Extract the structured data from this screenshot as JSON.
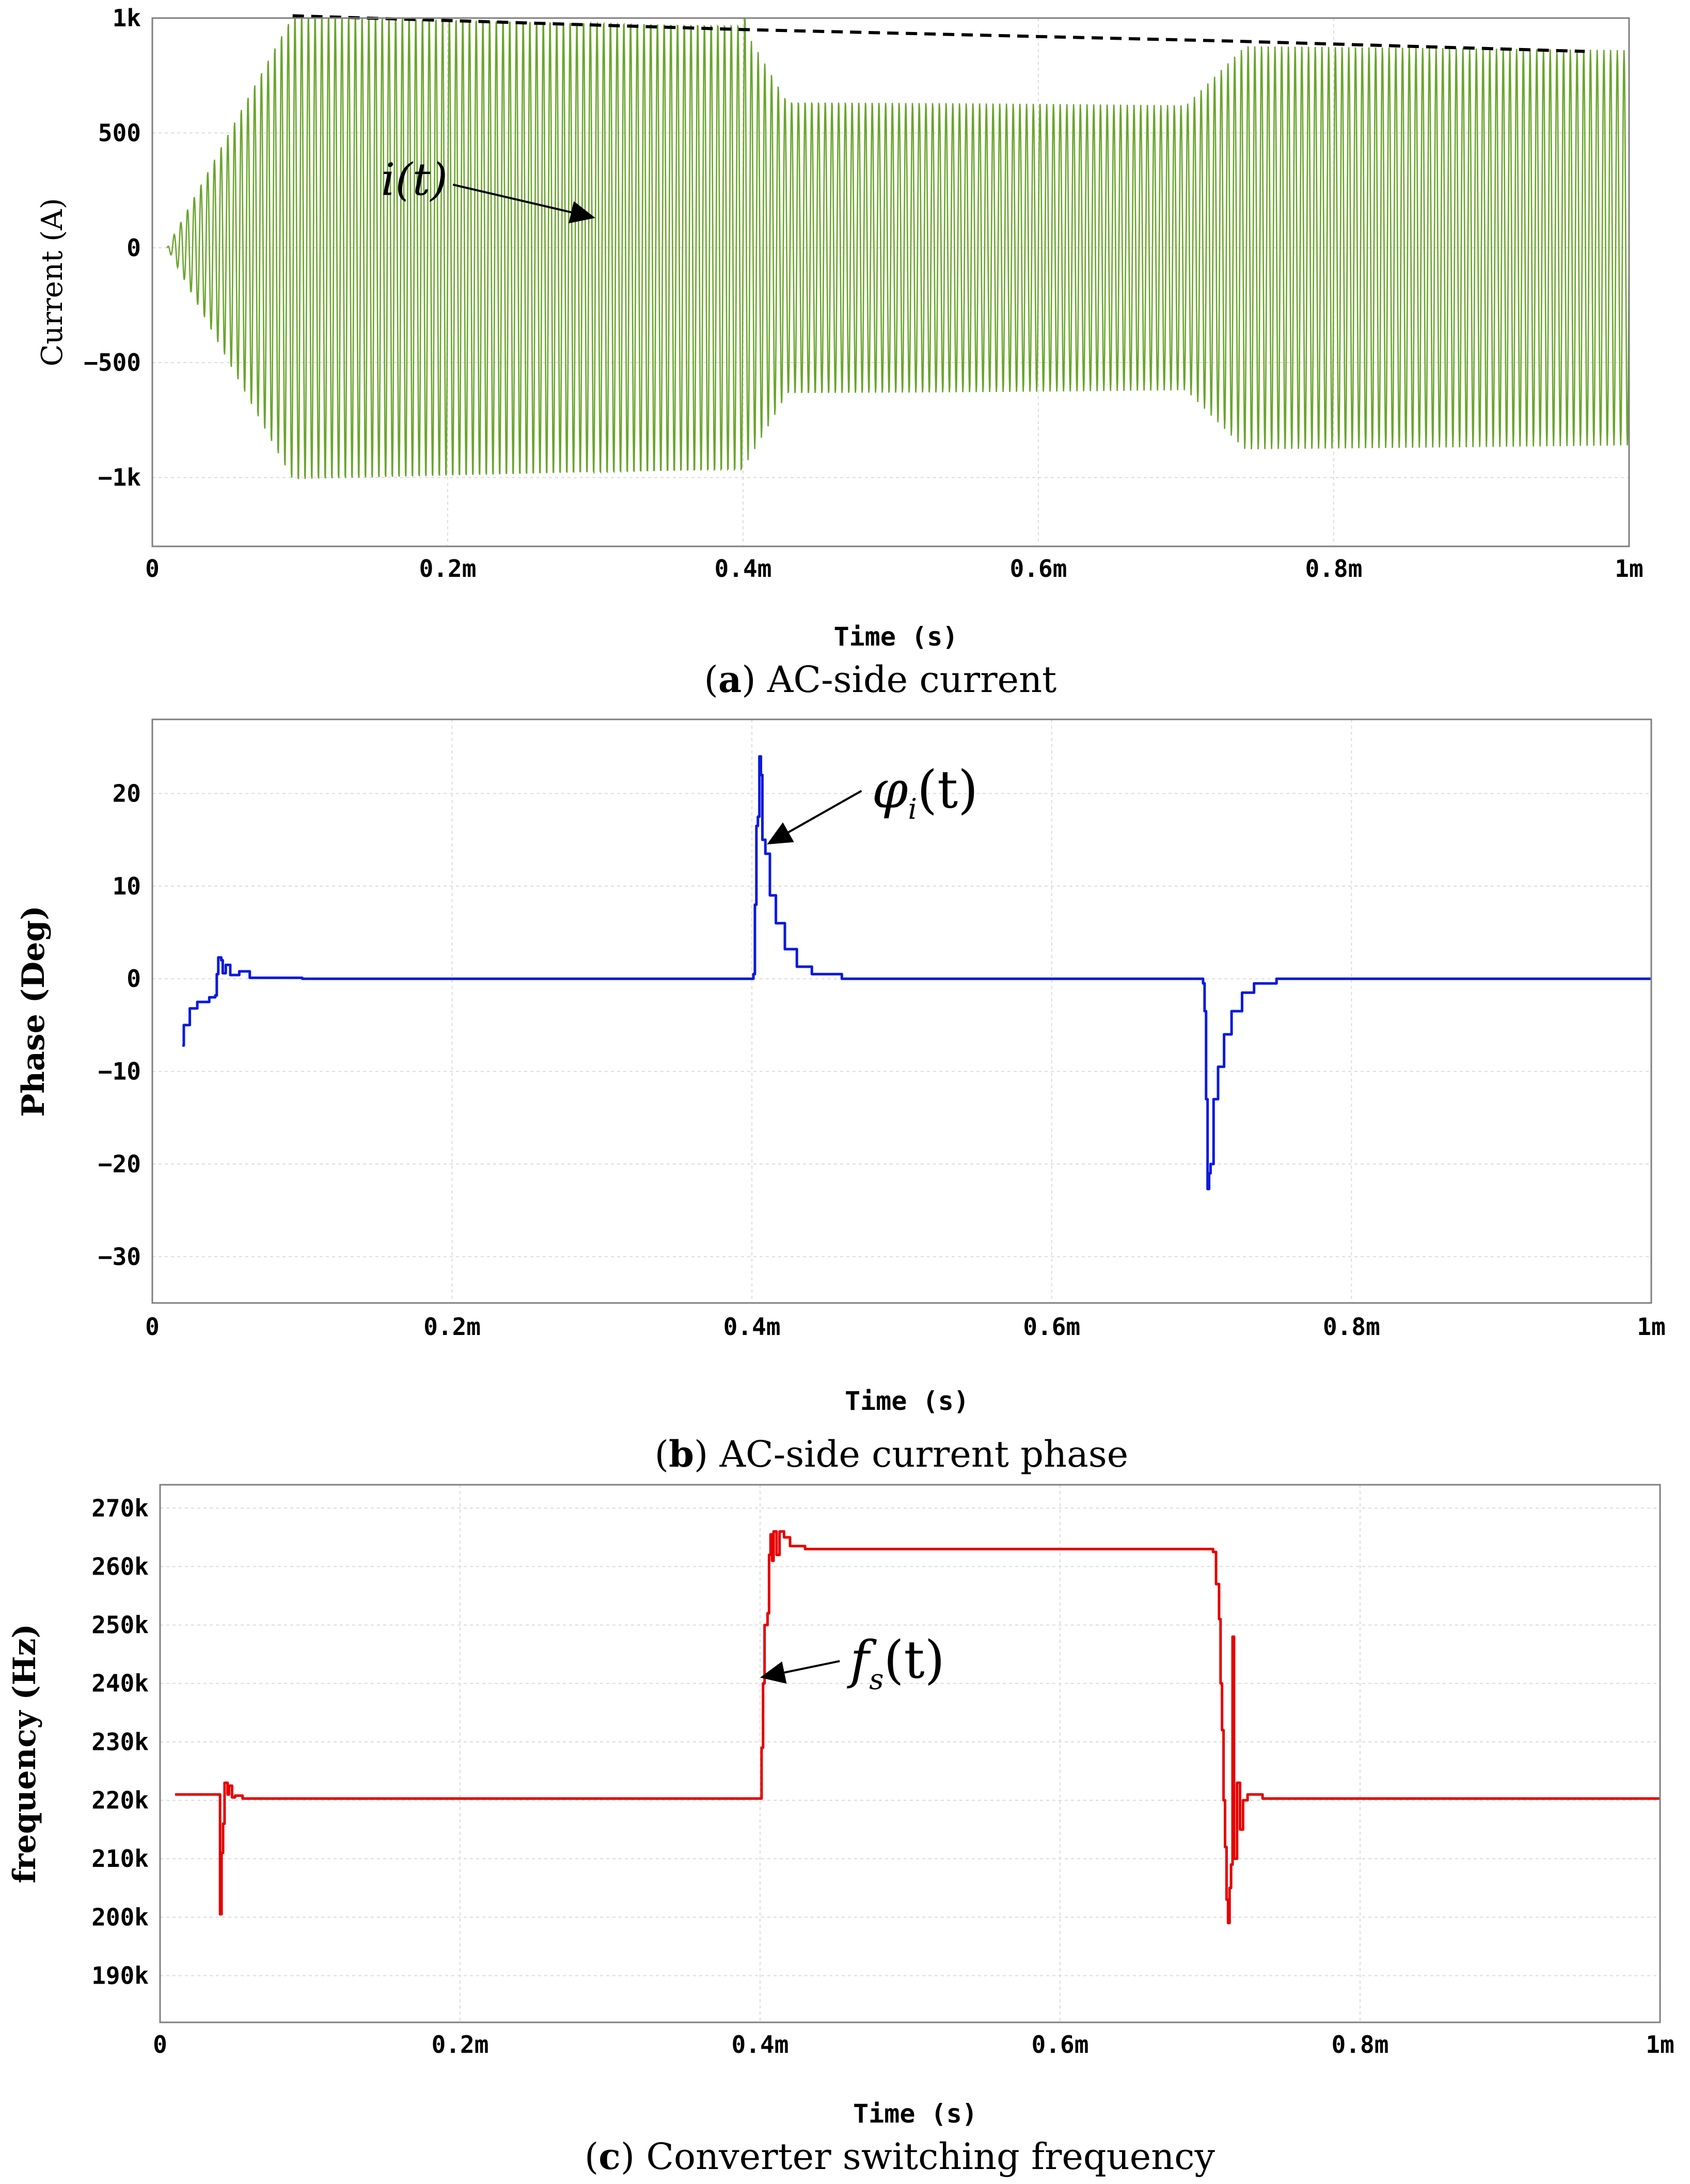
{
  "chart_data": [
    {
      "id": "a",
      "type": "line",
      "caption_letter": "a",
      "caption": "AC-side current",
      "xlabel": "Time (s)",
      "ylabel": "Current (A)",
      "xlim": [
        0,
        1
      ],
      "ylim": [
        -1300,
        1000
      ],
      "x_unit": "ms",
      "xticks": [
        {
          "value": 0,
          "label": "0"
        },
        {
          "value": 0.2,
          "label": "0.2m"
        },
        {
          "value": 0.4,
          "label": "0.4m"
        },
        {
          "value": 0.6,
          "label": "0.6m"
        },
        {
          "value": 0.8,
          "label": "0.8m"
        },
        {
          "value": 1,
          "label": "1m"
        }
      ],
      "yticks": [
        {
          "value": 1000,
          "label": "1k"
        },
        {
          "value": 500,
          "label": "500"
        },
        {
          "value": 0,
          "label": "0"
        },
        {
          "value": -500,
          "label": "−500"
        },
        {
          "value": -1000,
          "label": "−1k"
        }
      ],
      "grid": true,
      "color": "#6aa52b",
      "signal": {
        "kind": "sinusoid",
        "cycles_per_ms": 220,
        "segments": [
          {
            "t0": 0.01,
            "t1": 0.095,
            "amp0": 0,
            "amp1": 1020
          },
          {
            "t0": 0.095,
            "t1": 0.401,
            "amp0": 1020,
            "amp1": 980
          },
          {
            "t0": 0.401,
            "t1": 0.402,
            "amp0": 1080,
            "amp1": 1080
          },
          {
            "t0": 0.402,
            "t1": 0.43,
            "amp0": 940,
            "amp1": 640
          },
          {
            "t0": 0.43,
            "t1": 0.7,
            "amp0": 640,
            "amp1": 620
          },
          {
            "t0": 0.7,
            "t1": 0.74,
            "amp0": 620,
            "amp1": 880
          },
          {
            "t0": 0.74,
            "t1": 1.0,
            "amp0": 880,
            "amp1": 860
          }
        ]
      },
      "envelope": [
        [
          0.095,
          1010
        ],
        [
          0.4,
          950
        ],
        [
          0.73,
          900
        ],
        [
          0.97,
          855
        ]
      ],
      "annotation": {
        "text": "i(t)",
        "x": 0.2,
        "y": 230,
        "arrow_to": [
          0.3,
          130
        ]
      }
    },
    {
      "id": "b",
      "type": "line",
      "caption_letter": "b",
      "caption": "AC-side current phase",
      "xlabel": "Time (s)",
      "ylabel": "Phase (Deg)",
      "xlim": [
        0,
        1
      ],
      "ylim": [
        -35,
        28
      ],
      "x_unit": "ms",
      "xticks": [
        {
          "value": 0,
          "label": "0"
        },
        {
          "value": 0.2,
          "label": "0.2m"
        },
        {
          "value": 0.4,
          "label": "0.4m"
        },
        {
          "value": 0.6,
          "label": "0.6m"
        },
        {
          "value": 0.8,
          "label": "0.8m"
        },
        {
          "value": 1,
          "label": "1m"
        }
      ],
      "yticks": [
        {
          "value": 20,
          "label": "20"
        },
        {
          "value": 10,
          "label": "10"
        },
        {
          "value": 0,
          "label": "0"
        },
        {
          "value": -10,
          "label": "−10"
        },
        {
          "value": -20,
          "label": "−20"
        },
        {
          "value": -30,
          "label": "−30"
        }
      ],
      "grid": true,
      "color": "#0a1adc",
      "points": [
        [
          0.02,
          -7.2
        ],
        [
          0.021,
          -5.0
        ],
        [
          0.025,
          -3.2
        ],
        [
          0.03,
          -2.5
        ],
        [
          0.038,
          -2.0
        ],
        [
          0.042,
          -1.8
        ],
        [
          0.043,
          0.5
        ],
        [
          0.044,
          2.3
        ],
        [
          0.046,
          2.0
        ],
        [
          0.047,
          0.6
        ],
        [
          0.049,
          1.5
        ],
        [
          0.052,
          0.4
        ],
        [
          0.058,
          0.8
        ],
        [
          0.065,
          0.1
        ],
        [
          0.1,
          0.0
        ],
        [
          0.2,
          0.0
        ],
        [
          0.3,
          0.0
        ],
        [
          0.4,
          0.0
        ],
        [
          0.401,
          0.5
        ],
        [
          0.402,
          8.0
        ],
        [
          0.403,
          16.5
        ],
        [
          0.404,
          17.5
        ],
        [
          0.405,
          24.0
        ],
        [
          0.406,
          22.0
        ],
        [
          0.407,
          15.0
        ],
        [
          0.409,
          13.5
        ],
        [
          0.412,
          9.0
        ],
        [
          0.416,
          6.0
        ],
        [
          0.422,
          3.2
        ],
        [
          0.43,
          1.3
        ],
        [
          0.44,
          0.5
        ],
        [
          0.46,
          0.0
        ],
        [
          0.6,
          0.0
        ],
        [
          0.7,
          0.0
        ],
        [
          0.701,
          -0.5
        ],
        [
          0.702,
          -3.5
        ],
        [
          0.703,
          -13.0
        ],
        [
          0.704,
          -22.7
        ],
        [
          0.705,
          -21.0
        ],
        [
          0.706,
          -20.0
        ],
        [
          0.708,
          -13.0
        ],
        [
          0.711,
          -9.5
        ],
        [
          0.715,
          -6.0
        ],
        [
          0.72,
          -3.5
        ],
        [
          0.727,
          -1.5
        ],
        [
          0.735,
          -0.5
        ],
        [
          0.75,
          0.0
        ],
        [
          0.9,
          0.0
        ],
        [
          1.0,
          0.0
        ]
      ],
      "annotation": {
        "text": "φ",
        "sub": "i",
        "suffix": "(t)",
        "x": 0.48,
        "y": 18.5,
        "arrow_to": [
          0.41,
          14.5
        ]
      }
    },
    {
      "id": "c",
      "type": "line",
      "caption_letter": "c",
      "caption": "Converter switching frequency",
      "xlabel": "Time (s)",
      "ylabel": "frequency (Hz)",
      "xlim": [
        0,
        1
      ],
      "ylim": [
        182000,
        274000
      ],
      "x_unit": "ms",
      "xticks": [
        {
          "value": 0,
          "label": "0"
        },
        {
          "value": 0.2,
          "label": "0.2m"
        },
        {
          "value": 0.4,
          "label": "0.4m"
        },
        {
          "value": 0.6,
          "label": "0.6m"
        },
        {
          "value": 0.8,
          "label": "0.8m"
        },
        {
          "value": 1,
          "label": "1m"
        }
      ],
      "yticks": [
        {
          "value": 270000,
          "label": "270k"
        },
        {
          "value": 260000,
          "label": "260k"
        },
        {
          "value": 250000,
          "label": "250k"
        },
        {
          "value": 240000,
          "label": "240k"
        },
        {
          "value": 230000,
          "label": "230k"
        },
        {
          "value": 220000,
          "label": "220k"
        },
        {
          "value": 210000,
          "label": "210k"
        },
        {
          "value": 200000,
          "label": "200k"
        },
        {
          "value": 190000,
          "label": "190k"
        }
      ],
      "grid": true,
      "color": "#e60000",
      "points": [
        [
          0.01,
          221000
        ],
        [
          0.039,
          221000
        ],
        [
          0.04,
          200500
        ],
        [
          0.041,
          211000
        ],
        [
          0.042,
          216000
        ],
        [
          0.043,
          223000
        ],
        [
          0.045,
          221000
        ],
        [
          0.046,
          222500
        ],
        [
          0.048,
          220500
        ],
        [
          0.05,
          220800
        ],
        [
          0.055,
          220300
        ],
        [
          0.1,
          220300
        ],
        [
          0.2,
          220300
        ],
        [
          0.3,
          220300
        ],
        [
          0.4,
          220300
        ],
        [
          0.401,
          229000
        ],
        [
          0.402,
          240000
        ],
        [
          0.403,
          250000
        ],
        [
          0.405,
          252000
        ],
        [
          0.406,
          262000
        ],
        [
          0.407,
          265500
        ],
        [
          0.408,
          261000
        ],
        [
          0.409,
          266000
        ],
        [
          0.411,
          262000
        ],
        [
          0.413,
          266000
        ],
        [
          0.416,
          265000
        ],
        [
          0.42,
          263500
        ],
        [
          0.43,
          263000
        ],
        [
          0.6,
          263000
        ],
        [
          0.7,
          263000
        ],
        [
          0.702,
          262500
        ],
        [
          0.704,
          257000
        ],
        [
          0.706,
          251000
        ],
        [
          0.707,
          240000
        ],
        [
          0.708,
          232000
        ],
        [
          0.709,
          220000
        ],
        [
          0.71,
          212000
        ],
        [
          0.711,
          203000
        ],
        [
          0.712,
          199000
        ],
        [
          0.713,
          205000
        ],
        [
          0.714,
          209000
        ],
        [
          0.715,
          248000
        ],
        [
          0.716,
          210000
        ],
        [
          0.718,
          223000
        ],
        [
          0.72,
          215000
        ],
        [
          0.722,
          220000
        ],
        [
          0.725,
          221000
        ],
        [
          0.735,
          220300
        ],
        [
          0.8,
          220300
        ],
        [
          0.9,
          220300
        ],
        [
          1.0,
          220300
        ]
      ],
      "annotation": {
        "text": "f",
        "sub": "s",
        "suffix": "(t)",
        "x": 0.46,
        "y": 241000,
        "arrow_to": [
          0.4,
          241000
        ]
      }
    }
  ]
}
